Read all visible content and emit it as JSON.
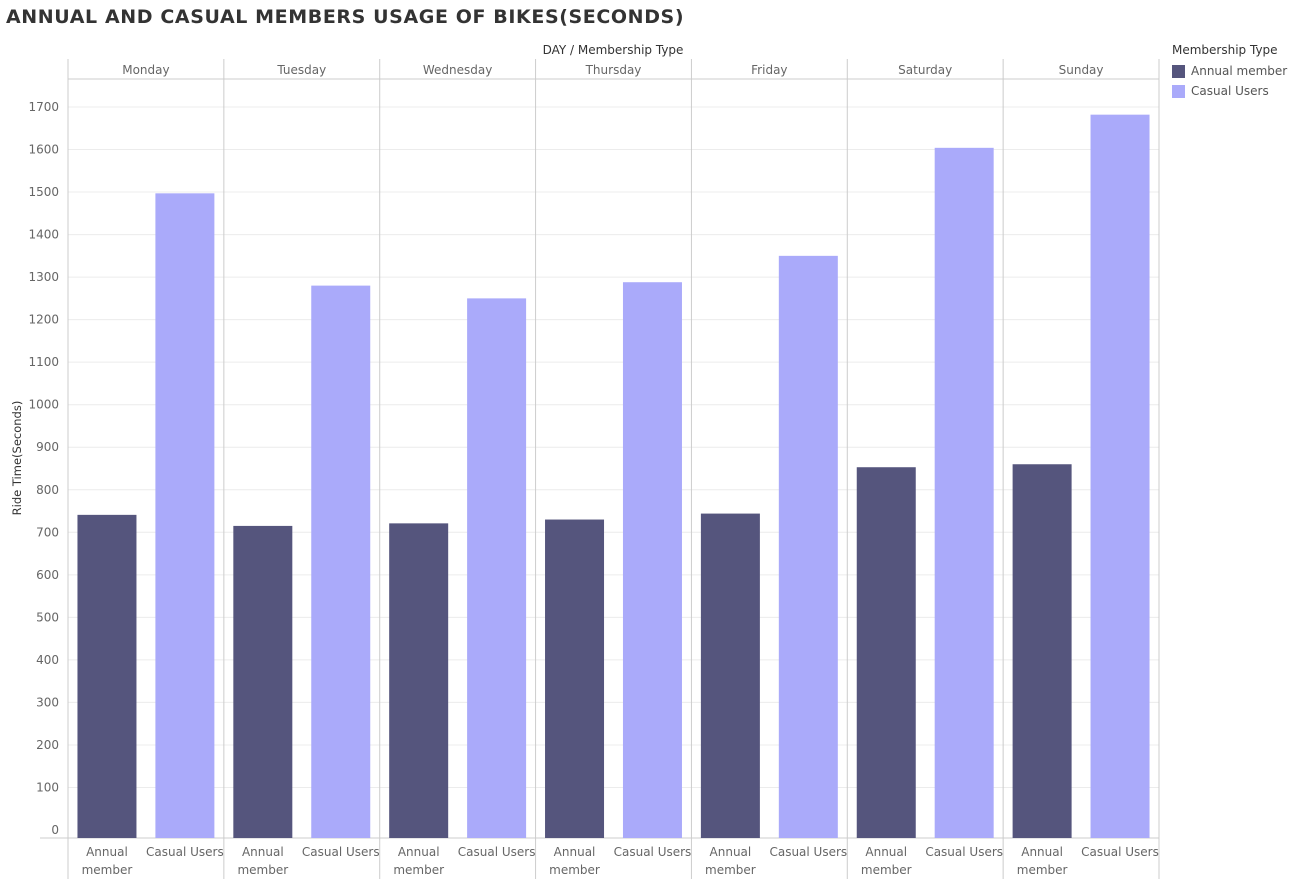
{
  "title": "ANNUAL AND CASUAL MEMBERS USAGE OF BIKES(SECONDS)",
  "legend": {
    "title": "Membership Type",
    "items": [
      {
        "label": "Annual member",
        "color": "#55557d"
      },
      {
        "label": "Casual Users",
        "color": "#aaaafa"
      }
    ]
  },
  "chart_data": {
    "type": "bar",
    "title": "ANNUAL AND CASUAL MEMBERS USAGE OF BIKES(SECONDS)",
    "column_header": "DAY / Membership Type",
    "ylabel": "Ride Time(Seconds)",
    "ylim": [
      0,
      1700
    ],
    "yticks": [
      0,
      100,
      200,
      300,
      400,
      500,
      600,
      700,
      800,
      900,
      1000,
      1100,
      1200,
      1300,
      1400,
      1500,
      1600,
      1700
    ],
    "grid": true,
    "legend_position": "top-right",
    "categories": [
      "Monday",
      "Tuesday",
      "Wednesday",
      "Thursday",
      "Friday",
      "Saturday",
      "Sunday"
    ],
    "sub_categories": [
      {
        "line1": "Annual",
        "line2": "member"
      },
      {
        "line1": "Casual Users",
        "line2": ""
      }
    ],
    "series": [
      {
        "name": "Annual member",
        "color": "#55557d",
        "values": [
          741,
          715,
          721,
          730,
          744,
          853,
          860
        ]
      },
      {
        "name": "Casual Users",
        "color": "#aaaafa",
        "values": [
          1497,
          1280,
          1250,
          1288,
          1350,
          1604,
          1682
        ]
      }
    ]
  }
}
